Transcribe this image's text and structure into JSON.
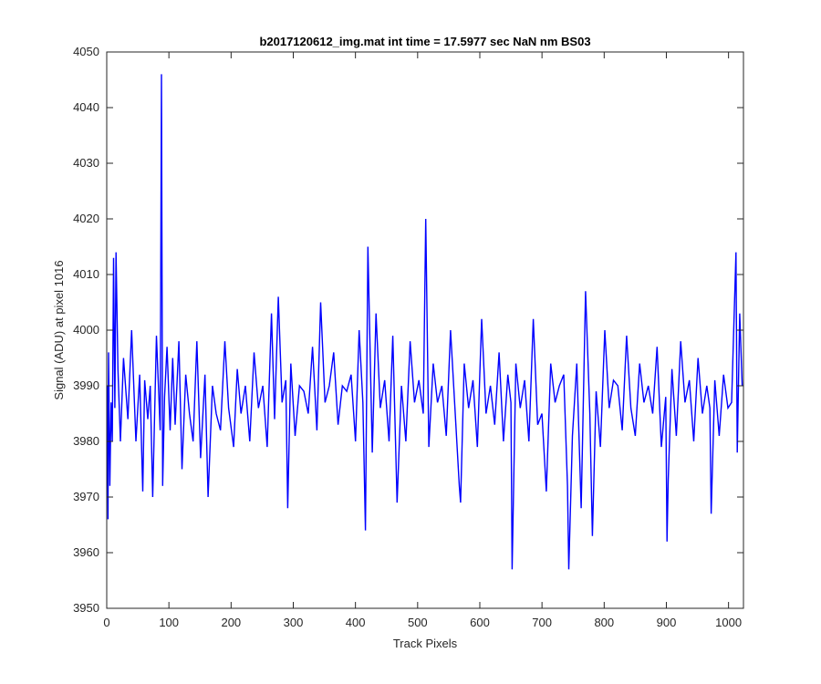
{
  "chart_data": {
    "type": "line",
    "title": "b2017120612_img.mat int time = 17.5977 sec  NaN nm BS03",
    "xlabel": "Track Pixels",
    "ylabel": "Signal (ADU) at pixel 1016",
    "xlim": [
      0,
      1024
    ],
    "ylim": [
      3950,
      4050
    ],
    "xticks": [
      0,
      100,
      200,
      300,
      400,
      500,
      600,
      700,
      800,
      900,
      1000
    ],
    "yticks": [
      3950,
      3960,
      3970,
      3980,
      3990,
      4000,
      4010,
      4020,
      4030,
      4040,
      4050
    ],
    "xtick_labels": [
      "0",
      "100",
      "200",
      "300",
      "400",
      "500",
      "600",
      "700",
      "800",
      "900",
      "1000"
    ],
    "ytick_labels": [
      "3950",
      "3960",
      "3970",
      "3980",
      "3990",
      "4000",
      "4010",
      "4020",
      "4030",
      "4040",
      "4050"
    ],
    "grid": false,
    "series": [
      {
        "color": "#0000ff",
        "x": [
          1,
          2,
          3,
          5,
          7,
          9,
          11,
          13,
          15,
          18,
          22,
          27,
          34,
          40,
          47,
          53,
          58,
          61,
          66,
          70,
          74,
          80,
          86,
          88,
          90,
          93,
          97,
          102,
          106,
          110,
          116,
          121,
          127,
          133,
          139,
          145,
          151,
          158,
          163,
          170,
          176,
          183,
          190,
          196,
          204,
          210,
          216,
          223,
          230,
          237,
          244,
          251,
          258,
          265,
          270,
          276,
          282,
          288,
          291,
          296,
          303,
          310,
          317,
          324,
          331,
          338,
          344,
          351,
          358,
          365,
          372,
          379,
          386,
          393,
          400,
          406,
          412,
          416,
          420,
          427,
          433,
          440,
          447,
          454,
          460,
          467,
          474,
          481,
          488,
          495,
          502,
          509,
          513,
          518,
          525,
          532,
          539,
          546,
          553,
          560,
          567,
          569,
          575,
          582,
          589,
          596,
          603,
          610,
          617,
          624,
          631,
          638,
          645,
          650,
          652,
          658,
          665,
          672,
          679,
          686,
          693,
          700,
          707,
          714,
          721,
          728,
          735,
          741,
          743,
          749,
          756,
          763,
          770,
          777,
          781,
          787,
          794,
          801,
          808,
          815,
          822,
          829,
          836,
          843,
          850,
          857,
          864,
          871,
          878,
          885,
          892,
          899,
          901,
          903,
          909,
          916,
          923,
          930,
          937,
          944,
          951,
          958,
          965,
          970,
          972,
          978,
          985,
          992,
          999,
          1005,
          1012,
          1014,
          1018,
          1022
        ],
        "y": [
          3990,
          3966,
          3996,
          3972,
          3987,
          3980,
          4013,
          3986,
          4014,
          3993,
          3980,
          3995,
          3984,
          4000,
          3980,
          3992,
          3971,
          3991,
          3984,
          3990,
          3970,
          3999,
          3982,
          4046,
          3972,
          3988,
          3997,
          3982,
          3995,
          3983,
          3998,
          3975,
          3992,
          3985,
          3980,
          3998,
          3977,
          3992,
          3970,
          3990,
          3985,
          3982,
          3998,
          3986,
          3979,
          3993,
          3985,
          3990,
          3980,
          3996,
          3986,
          3990,
          3979,
          4003,
          3984,
          4006,
          3987,
          3991,
          3968,
          3994,
          3981,
          3990,
          3989,
          3985,
          3997,
          3982,
          4005,
          3987,
          3990,
          3996,
          3983,
          3990,
          3989,
          3992,
          3980,
          4000,
          3987,
          3964,
          4015,
          3978,
          4003,
          3986,
          3991,
          3980,
          3999,
          3969,
          3990,
          3980,
          3998,
          3987,
          3991,
          3985,
          4020,
          3979,
          3994,
          3987,
          3990,
          3981,
          4000,
          3986,
          3972,
          3969,
          3994,
          3986,
          3991,
          3979,
          4002,
          3985,
          3990,
          3983,
          3996,
          3980,
          3992,
          3987,
          3957,
          3994,
          3986,
          3991,
          3980,
          4002,
          3983,
          3985,
          3971,
          3994,
          3987,
          3990,
          3992,
          3972,
          3957,
          3981,
          3994,
          3968,
          4007,
          3985,
          3963,
          3989,
          3979,
          4000,
          3986,
          3991,
          3990,
          3982,
          3999,
          3986,
          3981,
          3994,
          3987,
          3990,
          3985,
          3997,
          3979,
          3988,
          3962,
          3973,
          3993,
          3981,
          3998,
          3987,
          3991,
          3980,
          3995,
          3985,
          3990,
          3986,
          3967,
          3991,
          3981,
          3992,
          3986,
          3987,
          4014,
          3978,
          4003,
          3990
        ]
      }
    ]
  }
}
